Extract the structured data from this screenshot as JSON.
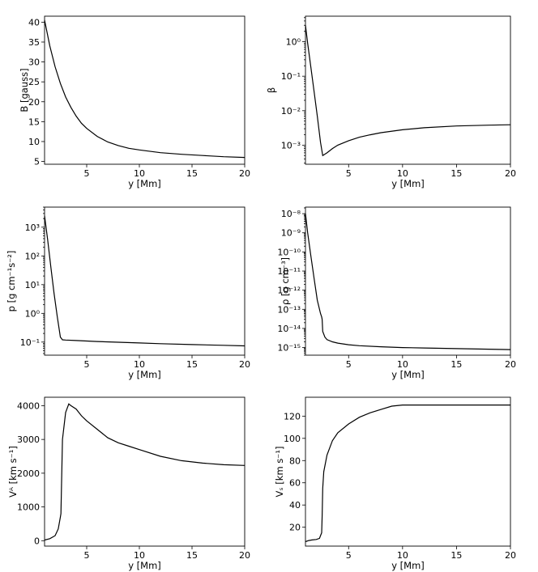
{
  "chart_data": [
    {
      "type": "line",
      "xlabel": "y [Mm]",
      "ylabel": "B [gauss]",
      "yscale": "linear",
      "xlim": [
        1,
        20
      ],
      "ylim": [
        4.3,
        41.5
      ],
      "xticks": [
        5,
        10,
        15,
        20
      ],
      "yticks": [
        5,
        10,
        15,
        20,
        25,
        30,
        35,
        40
      ],
      "grid": false,
      "series": [
        {
          "x": [
            1.0,
            1.5,
            2.0,
            2.5,
            3.0,
            3.5,
            4.0,
            4.5,
            5.0,
            6.0,
            7.0,
            8.0,
            9.0,
            10.0,
            12.0,
            14.0,
            16.0,
            18.0,
            20.0
          ],
          "y": [
            40.5,
            34.0,
            28.8,
            24.6,
            21.2,
            18.6,
            16.4,
            14.6,
            13.3,
            11.3,
            9.9,
            9.0,
            8.3,
            7.9,
            7.2,
            6.8,
            6.5,
            6.2,
            6.0
          ]
        }
      ]
    },
    {
      "type": "line",
      "xlabel": "y [Mm]",
      "ylabel": "β",
      "yscale": "log",
      "xlim": [
        1,
        20
      ],
      "ylim": [
        0.00028,
        5.5
      ],
      "xticks": [
        5,
        10,
        15,
        20
      ],
      "ytick_exponents": [
        -3,
        -2,
        -1,
        0
      ],
      "grid": false,
      "series": [
        {
          "x": [
            1.0,
            1.2,
            1.5,
            1.8,
            2.1,
            2.4,
            2.6,
            3.0,
            3.5,
            4.0,
            5.0,
            6.0,
            7.0,
            8.0,
            10.0,
            12.0,
            15.0,
            18.0,
            20.0
          ],
          "y": [
            3.0,
            0.9,
            0.18,
            0.035,
            0.007,
            0.0012,
            0.0005,
            0.0006,
            0.0008,
            0.001,
            0.00135,
            0.0017,
            0.002,
            0.0023,
            0.0028,
            0.0032,
            0.0036,
            0.0038,
            0.0039
          ]
        }
      ]
    },
    {
      "type": "line",
      "xlabel": "y [Mm]",
      "ylabel": "p [g cm⁻¹s⁻²]",
      "yscale": "log",
      "xlim": [
        1,
        20
      ],
      "ylim": [
        0.035,
        5000
      ],
      "xticks": [
        5,
        10,
        15,
        20
      ],
      "ytick_exponents": [
        -1,
        0,
        1,
        2,
        3
      ],
      "grid": false,
      "series": [
        {
          "x": [
            1.0,
            1.3,
            1.6,
            1.9,
            2.2,
            2.5,
            2.7,
            3.0,
            4.0,
            6.0,
            8.0,
            10.0,
            12.0,
            15.0,
            18.0,
            20.0
          ],
          "y": [
            2500,
            350,
            40,
            5,
            0.8,
            0.15,
            0.12,
            0.118,
            0.113,
            0.105,
            0.099,
            0.093,
            0.088,
            0.082,
            0.077,
            0.074
          ]
        }
      ]
    },
    {
      "type": "line",
      "xlabel": "y [Mm]",
      "ylabel": "ρ [g cm⁻³]",
      "yscale": "log",
      "xlim": [
        1,
        20
      ],
      "ylim": [
        4e-16,
        2.2e-08
      ],
      "xticks": [
        5,
        10,
        15,
        20
      ],
      "ytick_exponents": [
        -15,
        -14,
        -13,
        -12,
        -11,
        -10,
        -9,
        -8
      ],
      "grid": false,
      "series": [
        {
          "x": [
            1.0,
            1.2,
            1.5,
            1.8,
            2.1,
            2.4,
            2.5,
            2.55,
            2.6,
            2.8,
            3.0,
            3.5,
            4.0,
            5.0,
            6.0,
            8.0,
            10.0,
            12.0,
            15.0,
            18.0,
            20.0
          ],
          "y": [
            1e-08,
            1e-09,
            6e-11,
            4e-12,
            3e-13,
            6e-14,
            4e-14,
            3e-14,
            7e-15,
            3.5e-15,
            2.6e-15,
            2e-15,
            1.7e-15,
            1.4e-15,
            1.25e-15,
            1.1e-15,
            1e-15,
            9.5e-16,
            8.8e-16,
            8.2e-16,
            7.8e-16
          ]
        }
      ]
    },
    {
      "type": "line",
      "xlabel": "y [Mm]",
      "ylabel": "V_A [km s⁻¹]",
      "yscale": "linear",
      "xlim": [
        1,
        20
      ],
      "ylim": [
        -160,
        4250
      ],
      "xticks": [
        5,
        10,
        15,
        20
      ],
      "yticks": [
        0,
        1000,
        2000,
        3000,
        4000
      ],
      "grid": false,
      "series": [
        {
          "x": [
            1.0,
            1.5,
            2.0,
            2.3,
            2.5,
            2.55,
            2.6,
            2.7,
            3.0,
            3.3,
            3.5,
            4.0,
            4.5,
            5.0,
            6.0,
            7.0,
            8.0,
            9.0,
            10.0,
            12.0,
            14.0,
            16.0,
            18.0,
            20.0
          ],
          "y": [
            20,
            60,
            150,
            350,
            700,
            800,
            1500,
            3000,
            3800,
            4050,
            4000,
            3900,
            3700,
            3550,
            3300,
            3050,
            2900,
            2800,
            2700,
            2500,
            2370,
            2300,
            2250,
            2230
          ]
        }
      ]
    },
    {
      "type": "line",
      "xlabel": "y [Mm]",
      "ylabel": "V_s [km s⁻¹]",
      "yscale": "linear",
      "xlim": [
        1,
        20
      ],
      "ylim": [
        3,
        137
      ],
      "xticks": [
        5,
        10,
        15,
        20
      ],
      "yticks": [
        20,
        40,
        60,
        80,
        100,
        120
      ],
      "grid": false,
      "series": [
        {
          "x": [
            1.0,
            1.3,
            1.6,
            2.0,
            2.3,
            2.5,
            2.55,
            2.6,
            2.7,
            3.0,
            3.5,
            4.0,
            5.0,
            6.0,
            7.0,
            8.0,
            9.0,
            10.0,
            12.0,
            15.0,
            18.0,
            20.0
          ],
          "y": [
            7,
            8,
            8.5,
            9,
            10,
            15,
            30,
            55,
            70,
            85,
            98,
            105,
            113,
            119,
            123,
            126,
            129,
            130,
            130,
            130,
            130,
            130
          ]
        }
      ]
    }
  ]
}
